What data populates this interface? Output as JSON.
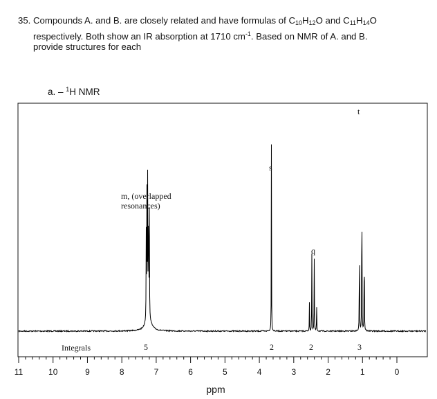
{
  "question": {
    "number": "35.",
    "line1_pre": "Compounds A. and B. are closely related and have formulas of C",
    "f1_c": "10",
    "f1_h_pre": "H",
    "f1_h": "12",
    "f1_o": "O and C",
    "f2_c": "11",
    "f2_h_pre": "H",
    "f2_h": "14",
    "f2_o": "O",
    "line2_pre": "respectively. Both show an IR absorption at 1710 cm",
    "line2_sup": "-1",
    "line2_post": ". Based on NMR of A. and B.",
    "line3": "provide structures for each"
  },
  "part": {
    "prefix": "a.  –  ",
    "sup": "1",
    "text": "H NMR"
  },
  "chart_data": {
    "type": "line",
    "title": "",
    "xlabel": "ppm",
    "ylabel": "",
    "xlim": [
      11,
      0
    ],
    "x_reversed": true,
    "x_ticks": [
      "11",
      "10",
      "9",
      "8",
      "7",
      "6",
      "5",
      "4",
      "3",
      "2",
      "1",
      "0"
    ],
    "grid": false,
    "peaks": [
      {
        "center": 7.25,
        "height": 0.64,
        "multiplicity": "m",
        "label": "m, (overlapped\nresonances)",
        "integral": "5"
      },
      {
        "center": 3.65,
        "height": 0.85,
        "multiplicity": "s",
        "label": "s",
        "integral": "2"
      },
      {
        "center": 2.44,
        "height": 0.4,
        "multiplicity": "q",
        "label": "q",
        "integral": "2"
      },
      {
        "center": 1.02,
        "height": 1.0,
        "multiplicity": "t",
        "label": "t",
        "integral": "3"
      }
    ],
    "integrals_label": "Integrals",
    "annotations": {
      "m_line1": "m, (overlapped",
      "m_line2": "resonances)",
      "s": "s",
      "q": "q",
      "t": "t"
    },
    "integrals": [
      "5",
      "2",
      "2",
      "3"
    ]
  }
}
